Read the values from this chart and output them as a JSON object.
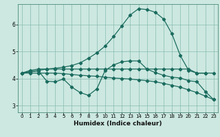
{
  "background_color": "#cce8e0",
  "grid_color": "#88bbb0",
  "line_color": "#1a6b5e",
  "xlabel": "Humidex (Indice chaleur)",
  "xlim": [
    -0.5,
    23.5
  ],
  "ylim": [
    2.75,
    6.75
  ],
  "yticks": [
    3,
    4,
    5,
    6
  ],
  "xticks": [
    0,
    1,
    2,
    3,
    4,
    5,
    6,
    7,
    8,
    9,
    10,
    11,
    12,
    13,
    14,
    15,
    16,
    17,
    18,
    19,
    20,
    21,
    22,
    23
  ],
  "line1_x": [
    0,
    1,
    2,
    3,
    4,
    5,
    6,
    7,
    8,
    9,
    10,
    11,
    12,
    13,
    14,
    15,
    16,
    17,
    18,
    19,
    20,
    21,
    22
  ],
  "line1_y": [
    4.2,
    4.3,
    4.35,
    4.35,
    4.35,
    4.35,
    4.35,
    4.35,
    4.35,
    4.35,
    4.35,
    4.35,
    4.35,
    4.35,
    4.35,
    4.35,
    4.35,
    4.35,
    4.35,
    4.35,
    4.35,
    4.2,
    4.2
  ],
  "line2_x": [
    0,
    1,
    2,
    3,
    4,
    5,
    6,
    7,
    8,
    9,
    10,
    11,
    12,
    13,
    14,
    15,
    16,
    17,
    18,
    19,
    20,
    21,
    22,
    23
  ],
  "line2_y": [
    4.2,
    4.25,
    4.3,
    4.35,
    4.38,
    4.42,
    4.48,
    4.58,
    4.75,
    4.95,
    5.2,
    5.55,
    5.95,
    6.35,
    6.58,
    6.55,
    6.45,
    6.2,
    5.65,
    4.85,
    4.3,
    4.2,
    4.2,
    4.2
  ],
  "line3_x": [
    0,
    1,
    2,
    3,
    4,
    5,
    6,
    7,
    8,
    9,
    10,
    11,
    12,
    13,
    14,
    15,
    16,
    17,
    18,
    19,
    20,
    21,
    22,
    23
  ],
  "line3_y": [
    4.2,
    4.25,
    4.28,
    3.9,
    3.88,
    3.98,
    3.68,
    3.48,
    3.38,
    3.62,
    4.3,
    4.5,
    4.62,
    4.65,
    4.65,
    4.35,
    4.22,
    4.12,
    4.05,
    4.02,
    3.92,
    3.88,
    3.52,
    3.22
  ],
  "line4_x": [
    0,
    1,
    2,
    3,
    4,
    5,
    6,
    7,
    8,
    9,
    10,
    11,
    12,
    13,
    14,
    15,
    16,
    17,
    18,
    19,
    20,
    21,
    22,
    23
  ],
  "line4_y": [
    4.2,
    4.2,
    4.2,
    4.2,
    4.2,
    4.18,
    4.15,
    4.12,
    4.1,
    4.08,
    4.05,
    4.02,
    4.0,
    3.98,
    3.95,
    3.92,
    3.88,
    3.82,
    3.75,
    3.68,
    3.58,
    3.48,
    3.35,
    3.22
  ]
}
